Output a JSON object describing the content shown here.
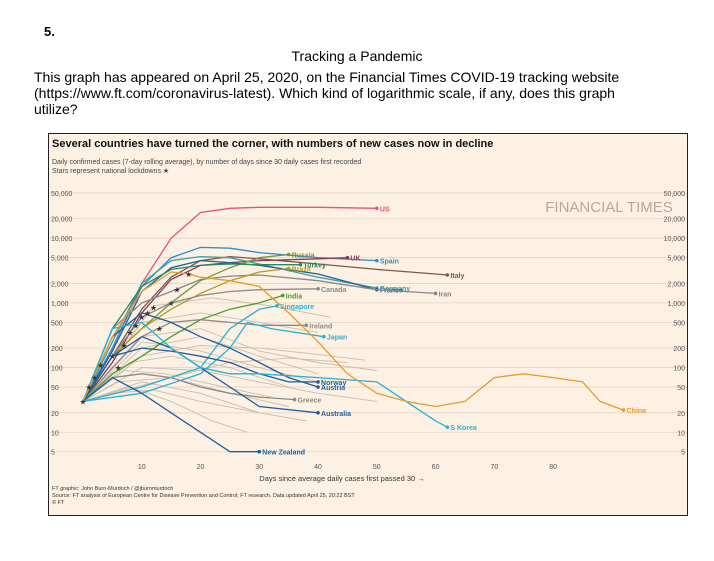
{
  "question": {
    "number": "5.",
    "title": "Tracking a Pandemic",
    "text": "This graph has appeared on April 25, 2020, on the Financial Times COVID-19 tracking website (https://www.ft.com/coronavirus-latest). Which kind of logarithmic scale, if any, does this graph utilize?"
  },
  "figure": {
    "headline": "Several countries have turned the corner, with numbers of new cases now in decline",
    "subtitle": "Daily confirmed cases (7-day rolling average), by number of days since 30 daily cases first recorded",
    "subtitle2": "Stars represent national lockdowns",
    "star_glyph": "★",
    "watermark": "FINANCIAL TIMES",
    "credit": "FT graphic: John Burn-Murdoch / @jburnmurdoch",
    "source": "Source: FT analysis of European Centre for Disease Prevention and Control; FT research. Data updated April 25, 20:22 BST",
    "copyright": "© FT"
  },
  "chart_data": {
    "type": "line",
    "xlabel": "Days since average daily cases first passed 30",
    "ylabel": "",
    "y_scale": "log",
    "xlim": [
      0,
      97
    ],
    "ylim": [
      4,
      50000
    ],
    "x_ticks": [
      10,
      20,
      30,
      40,
      50,
      60,
      70,
      80
    ],
    "y_ticks": [
      5,
      10,
      20,
      50,
      100,
      200,
      500,
      1000,
      2000,
      5000,
      10000,
      20000,
      50000
    ],
    "y_tick_labels": [
      "5",
      "10",
      "20",
      "50",
      "100",
      "200",
      "500",
      "1,000",
      "2,000",
      "5,000",
      "10,000",
      "20,000",
      "50,000"
    ],
    "grid": true,
    "background": "#fdf1e4",
    "highlighted_series": [
      {
        "name": "US",
        "color": "#e8507e",
        "points": [
          [
            0,
            30
          ],
          [
            5,
            200
          ],
          [
            10,
            2000
          ],
          [
            15,
            10000
          ],
          [
            20,
            25000
          ],
          [
            25,
            29000
          ],
          [
            30,
            30000
          ],
          [
            40,
            30000
          ],
          [
            50,
            29000
          ]
        ]
      },
      {
        "name": "Italy",
        "color": "#7a5a4a",
        "points": [
          [
            0,
            30
          ],
          [
            5,
            150
          ],
          [
            10,
            800
          ],
          [
            15,
            2500
          ],
          [
            20,
            4500
          ],
          [
            25,
            5200
          ],
          [
            30,
            4800
          ],
          [
            40,
            4000
          ],
          [
            50,
            3300
          ],
          [
            60,
            2800
          ],
          [
            62,
            2700
          ]
        ]
      },
      {
        "name": "Spain",
        "color": "#2e8bcc",
        "points": [
          [
            0,
            30
          ],
          [
            5,
            200
          ],
          [
            10,
            1800
          ],
          [
            15,
            5000
          ],
          [
            20,
            7200
          ],
          [
            25,
            7000
          ],
          [
            30,
            6000
          ],
          [
            40,
            5000
          ],
          [
            50,
            4500
          ]
        ]
      },
      {
        "name": "UK",
        "color": "#8b3a5e",
        "points": [
          [
            0,
            30
          ],
          [
            5,
            120
          ],
          [
            10,
            700
          ],
          [
            15,
            2300
          ],
          [
            20,
            3800
          ],
          [
            25,
            4200
          ],
          [
            30,
            4500
          ],
          [
            40,
            4800
          ],
          [
            45,
            5000
          ]
        ]
      },
      {
        "name": "Germany",
        "color": "#3aa0a0",
        "points": [
          [
            0,
            30
          ],
          [
            5,
            250
          ],
          [
            10,
            2000
          ],
          [
            15,
            4500
          ],
          [
            20,
            5200
          ],
          [
            25,
            5000
          ],
          [
            30,
            4000
          ],
          [
            40,
            2500
          ],
          [
            50,
            1700
          ]
        ]
      },
      {
        "name": "France",
        "color": "#1d5f9e",
        "points": [
          [
            0,
            30
          ],
          [
            5,
            180
          ],
          [
            10,
            1500
          ],
          [
            15,
            3500
          ],
          [
            20,
            4500
          ],
          [
            25,
            4200
          ],
          [
            30,
            3800
          ],
          [
            40,
            2800
          ],
          [
            50,
            1600
          ]
        ]
      },
      {
        "name": "Iran",
        "color": "#888888",
        "points": [
          [
            0,
            30
          ],
          [
            5,
            400
          ],
          [
            10,
            1000
          ],
          [
            15,
            1500
          ],
          [
            20,
            2300
          ],
          [
            25,
            2600
          ],
          [
            30,
            2700
          ],
          [
            40,
            2200
          ],
          [
            50,
            1600
          ],
          [
            60,
            1400
          ]
        ]
      },
      {
        "name": "Russia",
        "color": "#6a9a3a",
        "points": [
          [
            0,
            30
          ],
          [
            5,
            150
          ],
          [
            10,
            400
          ],
          [
            15,
            1000
          ],
          [
            20,
            2200
          ],
          [
            25,
            3500
          ],
          [
            30,
            5000
          ],
          [
            35,
            5600
          ]
        ]
      },
      {
        "name": "Turkey",
        "color": "#2a8a5a",
        "points": [
          [
            0,
            30
          ],
          [
            5,
            400
          ],
          [
            10,
            1800
          ],
          [
            15,
            3300
          ],
          [
            20,
            3800
          ],
          [
            25,
            4000
          ],
          [
            30,
            3900
          ],
          [
            37,
            3900
          ]
        ]
      },
      {
        "name": "Brazil",
        "color": "#b69a1e",
        "points": [
          [
            0,
            30
          ],
          [
            5,
            150
          ],
          [
            10,
            400
          ],
          [
            15,
            800
          ],
          [
            20,
            1400
          ],
          [
            25,
            2200
          ],
          [
            30,
            3000
          ],
          [
            35,
            3400
          ]
        ]
      },
      {
        "name": "Canada",
        "color": "#8a8a8a",
        "points": [
          [
            0,
            30
          ],
          [
            5,
            150
          ],
          [
            10,
            600
          ],
          [
            15,
            1000
          ],
          [
            20,
            1300
          ],
          [
            25,
            1500
          ],
          [
            30,
            1600
          ],
          [
            40,
            1650
          ]
        ]
      },
      {
        "name": "India",
        "color": "#4e9a2f",
        "points": [
          [
            0,
            30
          ],
          [
            5,
            80
          ],
          [
            10,
            150
          ],
          [
            15,
            300
          ],
          [
            20,
            550
          ],
          [
            25,
            800
          ],
          [
            30,
            1000
          ],
          [
            34,
            1300
          ]
        ]
      },
      {
        "name": "Singapore",
        "color": "#27b1d8",
        "points": [
          [
            0,
            30
          ],
          [
            10,
            50
          ],
          [
            20,
            100
          ],
          [
            25,
            400
          ],
          [
            30,
            800
          ],
          [
            33,
            900
          ]
        ]
      },
      {
        "name": "Ireland",
        "color": "#8a8a8a",
        "points": [
          [
            0,
            30
          ],
          [
            5,
            100
          ],
          [
            10,
            300
          ],
          [
            15,
            500
          ],
          [
            20,
            550
          ],
          [
            25,
            500
          ],
          [
            30,
            450
          ],
          [
            38,
            450
          ]
        ]
      },
      {
        "name": "Japan",
        "color": "#27b1d8",
        "points": [
          [
            0,
            30
          ],
          [
            10,
            40
          ],
          [
            20,
            80
          ],
          [
            25,
            200
          ],
          [
            28,
            500
          ],
          [
            32,
            400
          ],
          [
            41,
            300
          ]
        ]
      },
      {
        "name": "Norway",
        "color": "#1d5f9e",
        "points": [
          [
            0,
            30
          ],
          [
            5,
            150
          ],
          [
            10,
            200
          ],
          [
            15,
            180
          ],
          [
            20,
            150
          ],
          [
            25,
            120
          ],
          [
            30,
            80
          ],
          [
            35,
            60
          ],
          [
            40,
            60
          ]
        ]
      },
      {
        "name": "Austria",
        "color": "#1d5f9e",
        "points": [
          [
            0,
            30
          ],
          [
            5,
            300
          ],
          [
            10,
            700
          ],
          [
            15,
            500
          ],
          [
            20,
            300
          ],
          [
            25,
            200
          ],
          [
            30,
            120
          ],
          [
            35,
            70
          ],
          [
            40,
            50
          ]
        ]
      },
      {
        "name": "Greece",
        "color": "#8a8a8a",
        "points": [
          [
            0,
            30
          ],
          [
            5,
            70
          ],
          [
            10,
            80
          ],
          [
            15,
            70
          ],
          [
            20,
            50
          ],
          [
            25,
            40
          ],
          [
            30,
            35
          ],
          [
            36,
            32
          ]
        ]
      },
      {
        "name": "Australia",
        "color": "#1d5f9e",
        "points": [
          [
            0,
            30
          ],
          [
            5,
            150
          ],
          [
            10,
            300
          ],
          [
            15,
            200
          ],
          [
            20,
            100
          ],
          [
            25,
            50
          ],
          [
            30,
            25
          ],
          [
            40,
            20
          ]
        ]
      },
      {
        "name": "S Korea",
        "color": "#27b1d8",
        "points": [
          [
            0,
            30
          ],
          [
            5,
            400
          ],
          [
            10,
            500
          ],
          [
            15,
            200
          ],
          [
            20,
            100
          ],
          [
            25,
            80
          ],
          [
            30,
            80
          ],
          [
            40,
            70
          ],
          [
            50,
            60
          ],
          [
            55,
            30
          ],
          [
            60,
            15
          ],
          [
            62,
            12
          ]
        ]
      },
      {
        "name": "New Zealand",
        "color": "#1d5f9e",
        "points": [
          [
            0,
            30
          ],
          [
            5,
            70
          ],
          [
            10,
            40
          ],
          [
            15,
            20
          ],
          [
            20,
            10
          ],
          [
            25,
            5
          ],
          [
            30,
            5
          ]
        ]
      },
      {
        "name": "China",
        "color": "#e99a2c",
        "points": [
          [
            0,
            30
          ],
          [
            5,
            300
          ],
          [
            10,
            1500
          ],
          [
            15,
            3000
          ],
          [
            18,
            2800
          ],
          [
            20,
            2500
          ],
          [
            25,
            2200
          ],
          [
            30,
            1800
          ],
          [
            35,
            700
          ],
          [
            40,
            250
          ],
          [
            45,
            80
          ],
          [
            50,
            40
          ],
          [
            55,
            30
          ],
          [
            60,
            25
          ],
          [
            65,
            30
          ],
          [
            70,
            70
          ],
          [
            75,
            80
          ],
          [
            80,
            70
          ],
          [
            85,
            60
          ],
          [
            88,
            30
          ],
          [
            92,
            22
          ]
        ]
      }
    ],
    "background_series_note_hidden": [],
    "background_lines": [
      [
        [
          0,
          30
        ],
        [
          10,
          200
        ],
        [
          20,
          300
        ],
        [
          30,
          150
        ],
        [
          40,
          80
        ]
      ],
      [
        [
          0,
          30
        ],
        [
          10,
          300
        ],
        [
          20,
          400
        ],
        [
          30,
          180
        ],
        [
          40,
          120
        ],
        [
          50,
          90
        ]
      ],
      [
        [
          0,
          30
        ],
        [
          8,
          120
        ],
        [
          15,
          150
        ],
        [
          25,
          100
        ],
        [
          35,
          50
        ]
      ],
      [
        [
          0,
          30
        ],
        [
          10,
          100
        ],
        [
          20,
          90
        ],
        [
          30,
          60
        ],
        [
          40,
          40
        ],
        [
          50,
          30
        ]
      ],
      [
        [
          0,
          30
        ],
        [
          6,
          60
        ],
        [
          15,
          70
        ],
        [
          25,
          40
        ],
        [
          35,
          25
        ]
      ],
      [
        [
          0,
          30
        ],
        [
          10,
          60
        ],
        [
          20,
          40
        ],
        [
          30,
          20
        ],
        [
          38,
          15
        ]
      ],
      [
        [
          0,
          30
        ],
        [
          8,
          50
        ],
        [
          15,
          30
        ],
        [
          22,
          15
        ],
        [
          28,
          10
        ]
      ],
      [
        [
          0,
          30
        ],
        [
          10,
          500
        ],
        [
          20,
          700
        ],
        [
          30,
          500
        ],
        [
          40,
          350
        ]
      ],
      [
        [
          0,
          30
        ],
        [
          12,
          900
        ],
        [
          22,
          1200
        ],
        [
          32,
          900
        ],
        [
          42,
          600
        ]
      ],
      [
        [
          0,
          30
        ],
        [
          5,
          40
        ],
        [
          12,
          45
        ],
        [
          20,
          30
        ],
        [
          30,
          20
        ]
      ],
      [
        [
          0,
          30
        ],
        [
          10,
          150
        ],
        [
          20,
          220
        ],
        [
          30,
          200
        ],
        [
          40,
          160
        ],
        [
          48,
          130
        ]
      ],
      [
        [
          0,
          30
        ],
        [
          7,
          90
        ],
        [
          14,
          80
        ],
        [
          24,
          50
        ],
        [
          32,
          35
        ]
      ],
      [
        [
          0,
          30
        ],
        [
          10,
          250
        ],
        [
          20,
          180
        ],
        [
          30,
          100
        ],
        [
          40,
          60
        ]
      ],
      [
        [
          0,
          30
        ],
        [
          15,
          70
        ],
        [
          25,
          120
        ],
        [
          35,
          140
        ],
        [
          45,
          120
        ]
      ]
    ],
    "lockdown_stars": [
      [
        0,
        30
      ],
      [
        1,
        50
      ],
      [
        2,
        70
      ],
      [
        3,
        110
      ],
      [
        5,
        150
      ],
      [
        7,
        220
      ],
      [
        8,
        350
      ],
      [
        9,
        450
      ],
      [
        10,
        600
      ],
      [
        11,
        700
      ],
      [
        12,
        850
      ],
      [
        13,
        400
      ],
      [
        15,
        1000
      ],
      [
        16,
        1600
      ],
      [
        18,
        2800
      ],
      [
        6,
        100
      ]
    ]
  }
}
